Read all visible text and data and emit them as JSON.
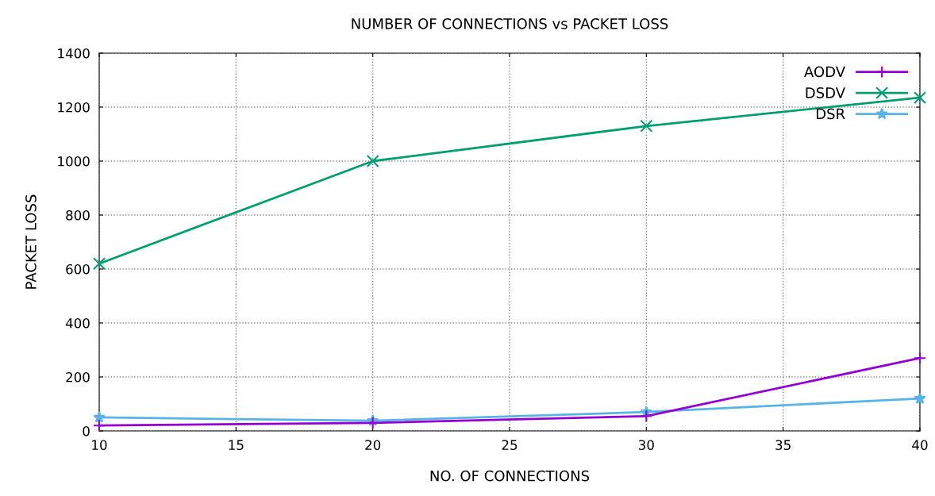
{
  "chart_data": {
    "type": "line",
    "title": "NUMBER OF CONNECTIONS vs PACKET LOSS",
    "xlabel": "NO. OF CONNECTIONS",
    "ylabel": "PACKET LOSS",
    "x": [
      10,
      20,
      30,
      40
    ],
    "series": [
      {
        "name": "AODV",
        "color": "#9400d3",
        "marker": "plus",
        "values": [
          20,
          30,
          55,
          270
        ]
      },
      {
        "name": "DSDV",
        "color": "#009e73",
        "marker": "cross",
        "values": [
          620,
          1000,
          1130,
          1235
        ]
      },
      {
        "name": "DSR",
        "color": "#56b4e9",
        "marker": "star",
        "values": [
          50,
          38,
          70,
          120
        ]
      }
    ],
    "xlim": [
      10,
      40
    ],
    "xticks": [
      10,
      15,
      20,
      25,
      30,
      35,
      40
    ],
    "ylim": [
      0,
      1400
    ],
    "yticks": [
      0,
      200,
      400,
      600,
      800,
      1000,
      1200,
      1400
    ],
    "grid": true,
    "legend": "top right",
    "line_style": "solid"
  }
}
